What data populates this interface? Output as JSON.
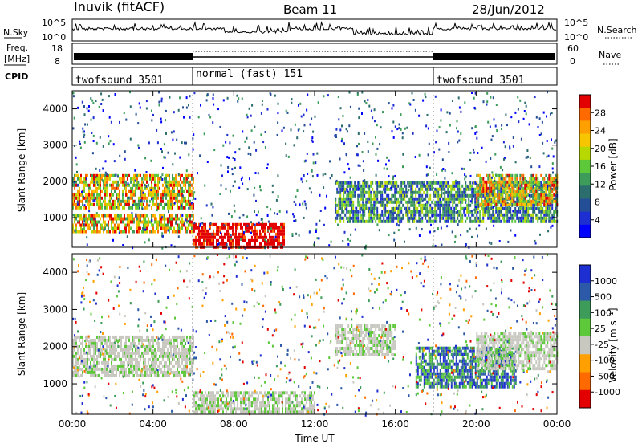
{
  "header": {
    "station": "Inuvik (fitACF)",
    "beam": "Beam 11",
    "date": "28/Jun/2012"
  },
  "panels": {
    "nsky": {
      "left_label": "N.Sky",
      "right_label": "N.Search",
      "ticks": [
        "10^5",
        "10^0"
      ]
    },
    "freq": {
      "left_label_1": "Freq.",
      "left_label_2": "[MHz]",
      "left_ticks": [
        "18",
        "8"
      ],
      "right_label": "Nave",
      "right_ticks": [
        "60",
        "0"
      ]
    },
    "cpid": {
      "left_label": "CPID",
      "segments": [
        {
          "label": "twofsound 3501",
          "start_hour": 0,
          "end_hour": 6
        },
        {
          "label": "normal (fast) 151",
          "start_hour": 6,
          "end_hour": 18
        },
        {
          "label": "twofsound 3501",
          "start_hour": 18,
          "end_hour": 24
        }
      ]
    }
  },
  "chart_data": [
    {
      "type": "heatmap",
      "name": "power",
      "ylabel": "Slant Range [km]",
      "xlim": [
        0,
        24
      ],
      "ylim": [
        180,
        4500
      ],
      "yticks": [
        1000,
        2000,
        3000,
        4000
      ],
      "colorbar": {
        "label": "Power [dB]",
        "ticks": [
          "28",
          "24",
          "20",
          "16",
          "12",
          "8",
          "4"
        ],
        "colors": [
          "#e30000",
          "#ff6a00",
          "#ff9f00",
          "#f7c600",
          "#b7d800",
          "#5cc83a",
          "#3d9c5a",
          "#2c6e6e",
          "#244f96",
          "#1d2fd0",
          "#0000ff"
        ]
      },
      "regions": [
        {
          "x0": 0,
          "x1": 6,
          "y0": 600,
          "y1": 1100,
          "level": "high"
        },
        {
          "x0": 0,
          "x1": 6,
          "y0": 1300,
          "y1": 2200,
          "level": "high"
        },
        {
          "x0": 6,
          "x1": 10.5,
          "y0": 200,
          "y1": 850,
          "level": "max"
        },
        {
          "x0": 13,
          "x1": 24,
          "y0": 900,
          "y1": 2000,
          "level": "medium"
        },
        {
          "x0": 20,
          "x1": 24,
          "y0": 1400,
          "y1": 2200,
          "level": "high"
        }
      ]
    },
    {
      "type": "heatmap",
      "name": "velocity",
      "ylabel": "Slant Range [km]",
      "xlabel": "Time UT",
      "xlim": [
        0,
        24
      ],
      "ylim": [
        180,
        4500
      ],
      "xticks": [
        "00:00",
        "04:00",
        "08:00",
        "12:00",
        "16:00",
        "20:00",
        "00:00"
      ],
      "yticks": [
        1000,
        2000,
        3000,
        4000
      ],
      "colorbar": {
        "label": "Velocity [m s⁻¹]",
        "ticks": [
          "1000",
          "500",
          "100",
          "25",
          "-25",
          "-100",
          "-500",
          "-1000"
        ],
        "colors": [
          "#1d2fd0",
          "#2c5aa8",
          "#3d9c5a",
          "#5cc83a",
          "#c8c8c0",
          "#ff9f00",
          "#ff6a00",
          "#e30000"
        ]
      },
      "regions": [
        {
          "x0": 0,
          "x1": 6,
          "y0": 1200,
          "y1": 2300,
          "level": "ground"
        },
        {
          "x0": 6,
          "x1": 12,
          "y0": 200,
          "y1": 800,
          "level": "ground"
        },
        {
          "x0": 13,
          "x1": 16,
          "y0": 1800,
          "y1": 2600,
          "level": "ground"
        },
        {
          "x0": 17,
          "x1": 22,
          "y0": 900,
          "y1": 2000,
          "level": "positive"
        },
        {
          "x0": 20,
          "x1": 24,
          "y0": 1400,
          "y1": 2400,
          "level": "ground"
        }
      ]
    }
  ]
}
